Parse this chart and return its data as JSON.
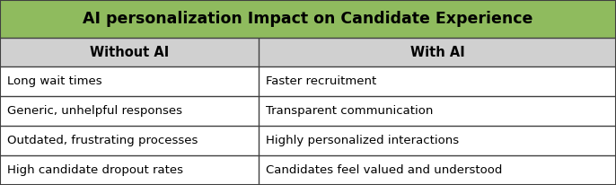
{
  "title": "AI personalization Impact on Candidate Experience",
  "col1_header": "Without AI",
  "col2_header": "With AI",
  "rows": [
    [
      "Long wait times",
      "Faster recruitment"
    ],
    [
      "Generic, unhelpful responses",
      "Transparent communication"
    ],
    [
      "Outdated, frustrating processes",
      "Highly personalized interactions"
    ],
    [
      "High candidate dropout rates",
      "Candidates feel valued and understood"
    ]
  ],
  "title_bg_color": "#8FBB5E",
  "header_bg_color": "#D0D0D0",
  "row_bg_color": "#FFFFFF",
  "border_color": "#404040",
  "title_fontsize": 12.5,
  "header_fontsize": 10.5,
  "row_fontsize": 9.5,
  "fig_width": 6.86,
  "fig_height": 2.06,
  "dpi": 100,
  "col_split": 0.42
}
